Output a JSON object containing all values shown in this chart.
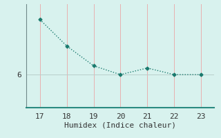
{
  "x": [
    17,
    18,
    19,
    20,
    21,
    22,
    23
  ],
  "y": [
    8.5,
    7.3,
    6.4,
    6.0,
    6.3,
    6.0,
    6.0
  ],
  "line_color": "#1a7a6e",
  "bg_color": "#d8f2ee",
  "grid_color_v": "#e8b0b0",
  "grid_color_h": "#b8ceca",
  "axis_color": "#708888",
  "bottom_color": "#2a8a80",
  "xlabel": "Humidex (Indice chaleur)",
  "xlabel_fontsize": 8,
  "tick_fontsize": 8,
  "ytick_labels": [
    "6"
  ],
  "ytick_values": [
    6
  ],
  "xlim": [
    16.5,
    23.5
  ],
  "ylim": [
    4.5,
    9.2
  ],
  "xticks": [
    17,
    18,
    19,
    20,
    21,
    22,
    23
  ],
  "marker": "D",
  "marker_size": 2.5,
  "line_width": 1.0,
  "linestyle": "dotted"
}
